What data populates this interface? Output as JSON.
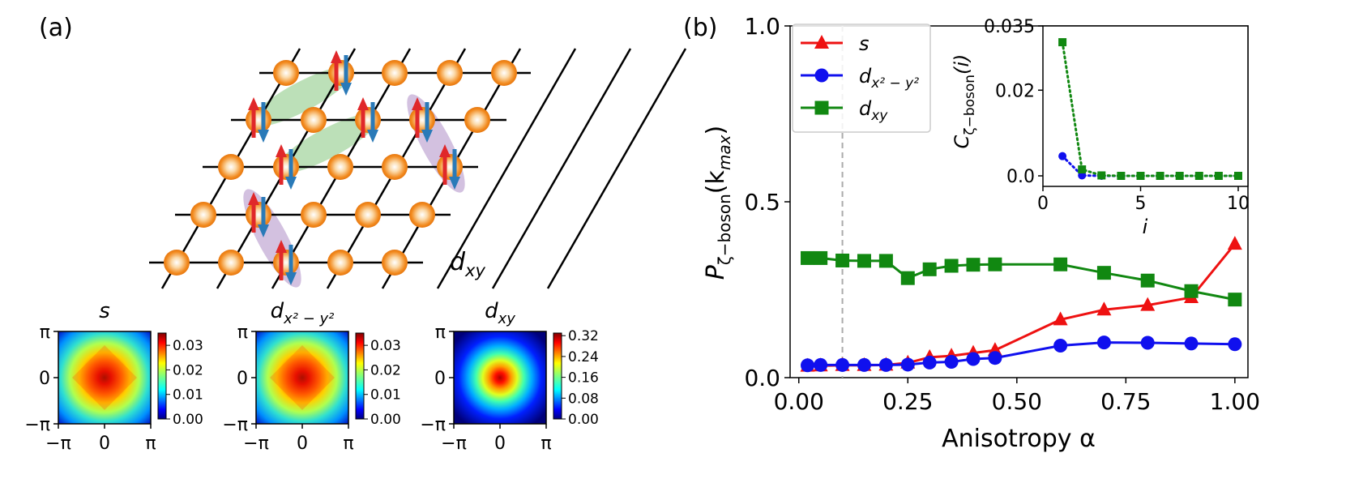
{
  "panel_a": {
    "label": "(a)",
    "lattice_label_main": "d",
    "lattice_label_sub": "xy",
    "heatmaps": [
      {
        "title_main": "s",
        "title_sub": "",
        "ticks_y": [
          "π",
          "0",
          "−π"
        ],
        "ticks_x": [
          "−π",
          "0",
          "π"
        ],
        "colorbar": [
          "0.03",
          "0.02",
          "0.01",
          "0.00"
        ],
        "peak": 0.035,
        "style": "diamond"
      },
      {
        "title_main": "d",
        "title_sub": "x² − y²",
        "ticks_y": [
          "π",
          "0",
          "−π"
        ],
        "ticks_x": [
          "−π",
          "0",
          "π"
        ],
        "colorbar": [
          "0.03",
          "0.02",
          "0.01",
          "0.00"
        ],
        "peak": 0.035,
        "style": "diamond"
      },
      {
        "title_main": "d",
        "title_sub": "xy",
        "ticks_y": [
          "π",
          "0",
          "−π"
        ],
        "ticks_x": [
          "−π",
          "0",
          "π"
        ],
        "colorbar": [
          "0.32",
          "0.24",
          "0.16",
          "0.08",
          "0.00"
        ],
        "peak": 0.33,
        "style": "square"
      }
    ]
  },
  "panel_b": {
    "label": "(b)",
    "xlabel": "Anisotropy α",
    "ylabel_main": "P",
    "ylabel_sub": "ζ−boson",
    "ylabel_arg": "(k",
    "ylabel_arg_sub": "max",
    "ylabel_close": ")",
    "inset": {
      "ylabel_main": "C",
      "ylabel_sub": "ζ−boson",
      "ylabel_arg": "(i)",
      "xlabel": "i"
    }
  },
  "colors": {
    "s": "#ee1111",
    "dx2y2": "#1010ee",
    "dxy": "#118811",
    "dashed": "#aaaaaa",
    "arrow_up": "#e0282a",
    "arrow_down": "#2a7ab8",
    "site": "#f28a1e",
    "bond_green": "#a6d6a0",
    "bond_purple": "#c4acd6"
  },
  "chart_data": [
    {
      "type": "line",
      "xlabel": "Anisotropy α",
      "ylabel": "Pζ−boson(kmax)",
      "xlim": [
        -0.02,
        1.03
      ],
      "ylim": [
        0.0,
        1.0
      ],
      "xticks": [
        "0.00",
        "0.25",
        "0.50",
        "0.75",
        "1.00"
      ],
      "yticks": [
        "0.0",
        "0.5",
        "1.0"
      ],
      "vline": 0.1,
      "legend_position": "top-left",
      "series": [
        {
          "name": "s",
          "label_main": "s",
          "label_sub": "",
          "marker": "triangle",
          "color_key": "s",
          "x": [
            0.02,
            0.05,
            0.1,
            0.15,
            0.2,
            0.25,
            0.3,
            0.35,
            0.4,
            0.45,
            0.6,
            0.7,
            0.8,
            0.9,
            1.0
          ],
          "y": [
            0.033,
            0.034,
            0.035,
            0.035,
            0.036,
            0.042,
            0.058,
            0.062,
            0.07,
            0.078,
            0.165,
            0.193,
            0.206,
            0.228,
            0.38
          ]
        },
        {
          "name": "d_{x²−y²}",
          "label_main": "d",
          "label_sub": "x² − y²",
          "marker": "circle",
          "color_key": "dx2y2",
          "x": [
            0.02,
            0.05,
            0.1,
            0.15,
            0.2,
            0.25,
            0.3,
            0.35,
            0.4,
            0.45,
            0.6,
            0.7,
            0.8,
            0.9,
            1.0
          ],
          "y": [
            0.035,
            0.036,
            0.036,
            0.036,
            0.036,
            0.037,
            0.043,
            0.045,
            0.053,
            0.056,
            0.091,
            0.1,
            0.099,
            0.097,
            0.095
          ]
        },
        {
          "name": "d_{xy}",
          "label_main": "d",
          "label_sub": "xy",
          "marker": "square",
          "color_key": "dxy",
          "x": [
            0.02,
            0.05,
            0.1,
            0.15,
            0.2,
            0.25,
            0.3,
            0.35,
            0.4,
            0.45,
            0.6,
            0.7,
            0.8,
            0.9,
            1.0
          ],
          "y": [
            0.34,
            0.34,
            0.333,
            0.332,
            0.332,
            0.283,
            0.308,
            0.318,
            0.321,
            0.322,
            0.322,
            0.298,
            0.276,
            0.246,
            0.222
          ]
        }
      ]
    },
    {
      "type": "line",
      "xlabel": "i",
      "ylabel": "Cζ−boson(i)",
      "xlim": [
        0,
        10
      ],
      "ylim": [
        0,
        0.035
      ],
      "xticks": [
        "0",
        "5",
        "10"
      ],
      "yticks": [
        "0.0",
        "0.02",
        "0.035"
      ],
      "series": [
        {
          "name": "d_{x²−y²}",
          "color_key": "dx2y2",
          "marker": "circle",
          "x": [
            1,
            2,
            3,
            4,
            5,
            6,
            7,
            8,
            9,
            10
          ],
          "y": [
            0.0046,
            0.0001,
            0,
            0,
            0,
            0,
            0,
            0,
            0,
            0
          ]
        },
        {
          "name": "d_{xy}",
          "color_key": "dxy",
          "marker": "square",
          "x": [
            1,
            2,
            3,
            4,
            5,
            6,
            7,
            8,
            9,
            10
          ],
          "y": [
            0.0312,
            0.0015,
            0.0001,
            0,
            0,
            0,
            0,
            0,
            0,
            0
          ]
        }
      ]
    }
  ]
}
